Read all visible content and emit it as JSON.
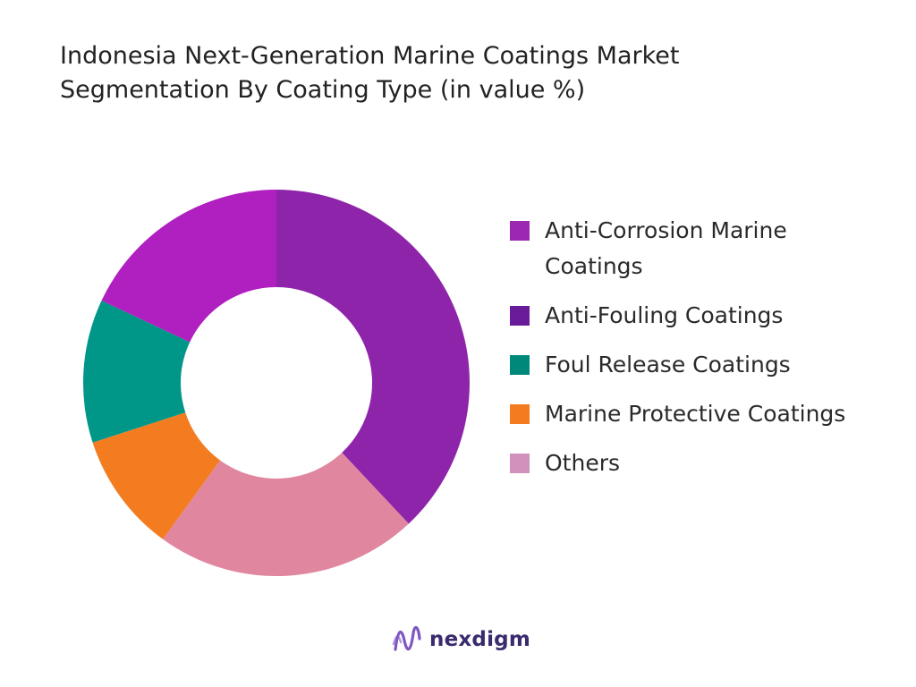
{
  "chart_data": {
    "type": "pie",
    "title": "Indonesia Next-Generation Marine Coatings Market",
    "subtitle": "Segmentation By Coating Type (in value %)",
    "donut": true,
    "legend_position": "right",
    "slices": [
      {
        "label": "Anti-Corrosion Marine Coatings",
        "value": 38,
        "color": "#8e24aa"
      },
      {
        "label": "Others",
        "value": 22,
        "color": "#e0879f"
      },
      {
        "label": "Marine Protective Coatings",
        "value": 10,
        "color": "#f47c20"
      },
      {
        "label": "Foul Release Coatings",
        "value": 12,
        "color": "#009688"
      },
      {
        "label": "Anti-Fouling Coatings",
        "value": 18,
        "color": "#b01fbf"
      }
    ],
    "legend": [
      {
        "label": "Anti-Corrosion Marine Coatings",
        "color": "#9c27b0"
      },
      {
        "label": "Anti-Fouling Coatings",
        "color": "#6a1b9a"
      },
      {
        "label": "Foul Release Coatings",
        "color": "#00897b"
      },
      {
        "label": "Marine Protective Coatings",
        "color": "#f47c20"
      },
      {
        "label": "Others",
        "color": "#d291bc"
      }
    ]
  },
  "brand": {
    "name": "nexdigm",
    "logo_icon": "nexdigm-wave-logo",
    "logo_color": "#7e57c2"
  }
}
